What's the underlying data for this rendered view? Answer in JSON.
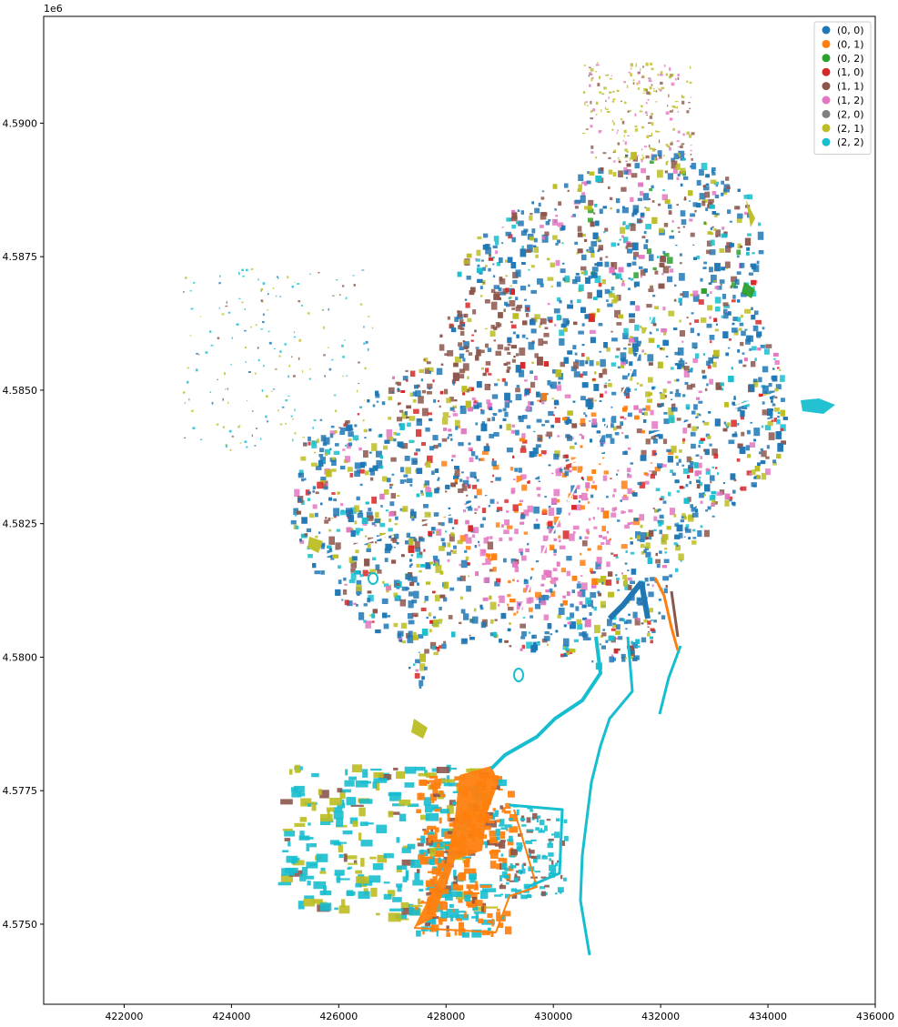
{
  "chart_data": {
    "type": "map",
    "title": "",
    "xlabel": "",
    "ylabel": "",
    "xlim": [
      420500,
      436000
    ],
    "ylim": [
      4573500,
      4592000
    ],
    "x_ticks": [
      422000,
      424000,
      426000,
      428000,
      430000,
      432000,
      434000,
      436000
    ],
    "x_tick_labels": [
      "422000",
      "424000",
      "426000",
      "428000",
      "430000",
      "432000",
      "434000",
      "436000"
    ],
    "y_ticks": [
      4575000,
      4577500,
      4580000,
      4582500,
      4585000,
      4587500,
      4590000
    ],
    "y_tick_labels": [
      "4.5750",
      "4.5775",
      "4.5800",
      "4.5825",
      "4.5850",
      "4.5875",
      "4.5900"
    ],
    "y_offset_label": "1e6",
    "grid": false,
    "legend_position": "top-right",
    "categories": [
      {
        "label": "(0, 0)",
        "color": "#1f77b4"
      },
      {
        "label": "(0, 1)",
        "color": "#ff7f0e"
      },
      {
        "label": "(0, 2)",
        "color": "#2ca02c"
      },
      {
        "label": "(1, 0)",
        "color": "#d62728"
      },
      {
        "label": "(1, 1)",
        "color": "#8c564b"
      },
      {
        "label": "(1, 2)",
        "color": "#e377c2"
      },
      {
        "label": "(2, 0)",
        "color": "#7f7f7f"
      },
      {
        "label": "(2, 1)",
        "color": "#bcbd22"
      },
      {
        "label": "(2, 2)",
        "color": "#17becf"
      }
    ]
  }
}
